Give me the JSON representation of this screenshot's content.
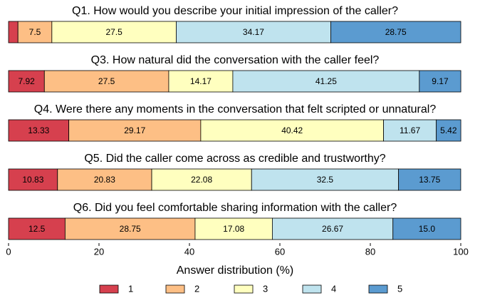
{
  "chart_data": {
    "type": "bar",
    "orientation": "horizontal",
    "stacked": true,
    "categories": [
      "Q1. How would you describe your initial impression of the caller?",
      "Q3. How natural did the conversation with the caller feel?",
      "Q4. Were there any moments in the conversation that felt scripted or unnatural?",
      "Q5. Did the caller come across as credible and trustworthy?",
      "Q6. Did you feel comfortable sharing information with the caller?"
    ],
    "series": [
      {
        "name": "1",
        "color": "#d6404e",
        "values": [
          2.08,
          7.92,
          13.33,
          10.83,
          12.5
        ],
        "value_labels": [
          null,
          "7.92",
          "13.33",
          "10.83",
          "12.5"
        ]
      },
      {
        "name": "2",
        "color": "#fdbf85",
        "values": [
          7.5,
          27.5,
          29.17,
          20.83,
          28.75
        ]
      },
      {
        "name": "3",
        "color": "#ffffbf",
        "values": [
          27.5,
          14.17,
          40.42,
          22.08,
          17.08
        ]
      },
      {
        "name": "4",
        "color": "#bfe3ee",
        "values": [
          34.17,
          41.25,
          11.67,
          32.5,
          26.67
        ]
      },
      {
        "name": "5",
        "color": "#5b9bd0",
        "values": [
          28.75,
          9.17,
          5.42,
          13.75,
          15
        ],
        "value_labels": [
          "28.75",
          "9.17",
          "5.42",
          "13.75",
          "15.0"
        ]
      }
    ],
    "xlabel": "Answer distribution (%)",
    "xlim": [
      0,
      100
    ],
    "xticks": [
      0,
      20,
      40,
      60,
      80,
      100
    ],
    "legend": "bottom"
  }
}
